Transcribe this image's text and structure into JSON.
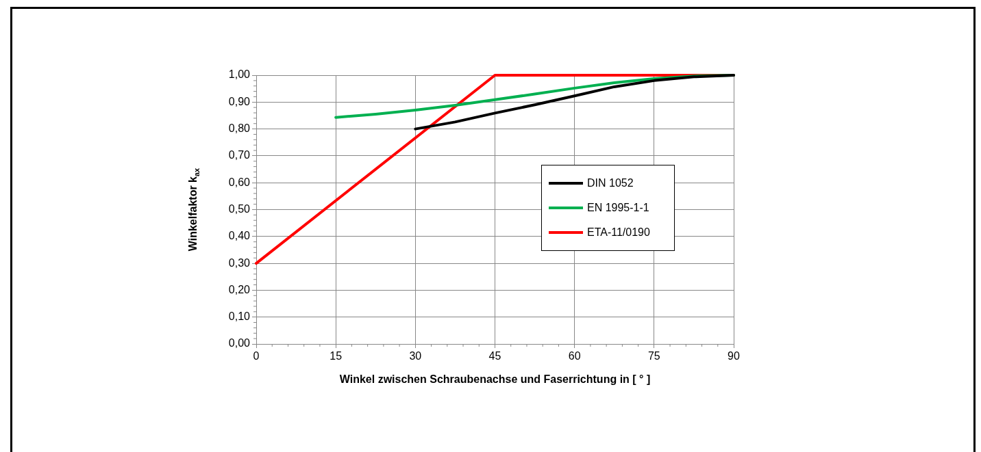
{
  "chart_data": {
    "type": "line",
    "xlabel": "Winkel zwischen Schraubenachse und Faserrichtung in [ ° ]",
    "ylabel": "Winkelfaktor k$_{ax}$",
    "xlim": [
      0,
      90
    ],
    "xticks": [
      0,
      15,
      30,
      45,
      60,
      75,
      90
    ],
    "ylim": [
      0,
      1
    ],
    "yticks": [
      {
        "value": 0,
        "label": "0,00"
      },
      {
        "value": 0.1,
        "label": "0,10"
      },
      {
        "value": 0.2,
        "label": "0,20"
      },
      {
        "value": 0.3,
        "label": "0,30"
      },
      {
        "value": 0.4,
        "label": "0,40"
      },
      {
        "value": 0.5,
        "label": "0,50"
      },
      {
        "value": 0.6,
        "label": "0,60"
      },
      {
        "value": 0.7,
        "label": "0,70"
      },
      {
        "value": 0.8,
        "label": "0,80"
      },
      {
        "value": 0.9,
        "label": "0,90"
      },
      {
        "value": 1,
        "label": "1,00"
      }
    ],
    "grid": true,
    "legend": "right",
    "marker": "none",
    "line_style": "solid",
    "series": [
      {
        "name": "DIN 1052",
        "color": "#000000",
        "x": [
          30,
          37.5,
          45,
          52.5,
          60,
          67.5,
          75,
          82.5,
          90
        ],
        "values": [
          0.8,
          0.826,
          0.859,
          0.89,
          0.923,
          0.957,
          0.98,
          0.994,
          1
        ]
      },
      {
        "name": "EN 1995-1-1",
        "color": "#00b050",
        "x": [
          15,
          22.5,
          30,
          37.5,
          45,
          52.5,
          60,
          67.5,
          75,
          82.5,
          90
        ],
        "values": [
          0.843,
          0.855,
          0.87,
          0.888,
          0.909,
          0.93,
          0.952,
          0.972,
          0.987,
          0.997,
          1
        ]
      },
      {
        "name": "ETA-11/0190",
        "color": "#ff0000",
        "x": [
          0,
          45,
          90
        ],
        "values": [
          0.3,
          1,
          1
        ]
      }
    ]
  }
}
